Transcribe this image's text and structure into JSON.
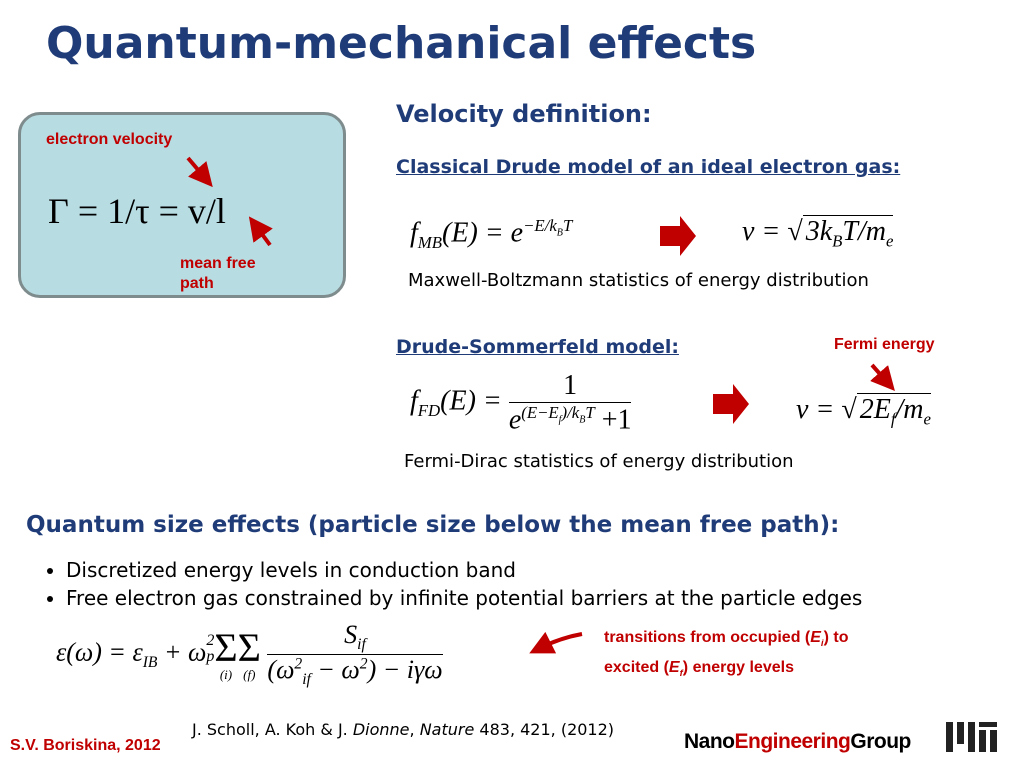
{
  "title": "Quantum-mechanical effects",
  "box": {
    "equation": "Γ = 1/τ = v/l",
    "label_velocity": "electron velocity",
    "label_path": "mean free path"
  },
  "velocity": {
    "heading": "Velocity definition:",
    "drude": {
      "heading": "Classical Drude model of an ideal electron gas:",
      "equation_left": [
        "f",
        "MB",
        "(E) = e",
        "−E/k",
        "B",
        "T"
      ],
      "equation_right": [
        "v = √",
        "3k",
        "B",
        "T/m",
        "e"
      ],
      "caption": "Maxwell-Boltzmann statistics of energy distribution"
    },
    "sommerfeld": {
      "heading": "Drude-Sommerfeld model:",
      "annotation": "Fermi energy",
      "equation_left": [
        "f",
        "FD",
        "(E) =",
        "1",
        "e",
        "(E−E",
        "f",
        ")/k",
        "B",
        "T",
        "+1"
      ],
      "equation_right": [
        "v = √",
        "2E",
        "f",
        "/m",
        "e"
      ],
      "caption": "Fermi-Dirac statistics of energy distribution"
    }
  },
  "quantum": {
    "heading": "Quantum size effects (particle size below the mean free path):",
    "bullets": [
      "Discretized energy levels in conduction band",
      "Free electron gas constrained by infinite potential barriers at the particle edges"
    ],
    "equation": [
      "ε(ω) = ε",
      "IB",
      "+ ω",
      "2",
      "p",
      "Σ",
      "(i)",
      "Σ",
      "(f)",
      "S",
      "if",
      "(ω",
      "2",
      "if",
      "− ω",
      "2",
      ") − iγω"
    ],
    "annotation": [
      "transitions from occupied (",
      "E",
      "i",
      ") to",
      "excited (",
      "E",
      "f",
      ") energy levels"
    ]
  },
  "footer": {
    "author": "S.V. Boriskina, 2012",
    "citation": [
      "J. Scholl, A. Koh & J. ",
      "Dionne",
      ", ",
      "Nature",
      " 483, 421, (2012)"
    ],
    "group": [
      "Nano",
      "Engineering",
      "Group"
    ]
  }
}
